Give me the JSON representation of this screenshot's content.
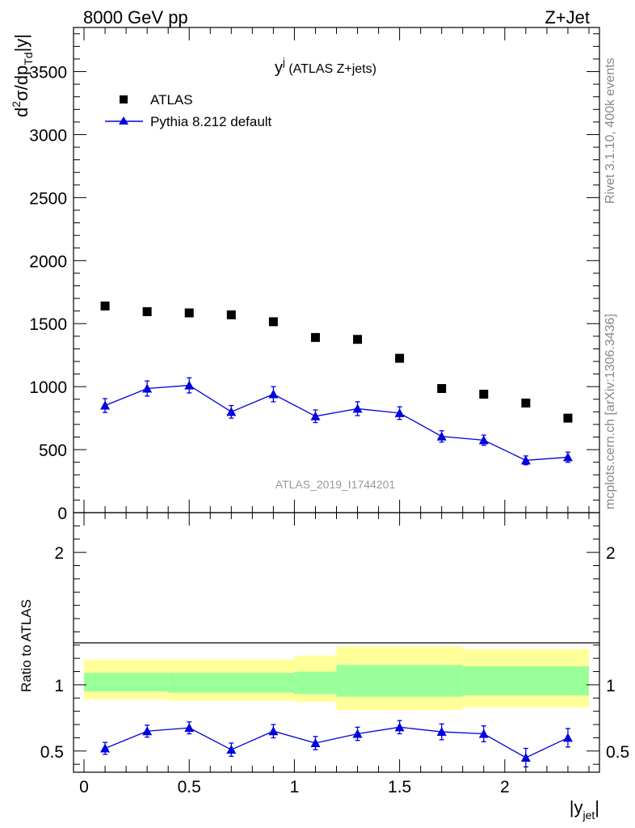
{
  "header": {
    "left": "8000 GeV pp",
    "right": "Z+Jet"
  },
  "side_labels": {
    "rivet": "Rivet 3.1.10,  400k events",
    "mcplots": "mcplots.cern.ch [arXiv:1306.3436]"
  },
  "colors": {
    "data": "#000000",
    "mc": "#0000dd",
    "band_inner": "#99ff99",
    "band_outer": "#ffff99"
  },
  "chart_data": [
    {
      "type": "scatter",
      "panel": "main",
      "title_main": "y",
      "title_sup": "j",
      "title_rest": " (ATLAS Z+jets)",
      "watermark": "ATLAS_2019_I1744201",
      "ylabel_parts": {
        "d": "d",
        "sup2": "2",
        "sigma_dp": "σ/dp",
        "sub_T": "T",
        "sub_d": "d",
        "abs": "|y|"
      },
      "xlim": [
        -0.05,
        2.45
      ],
      "ylim": [
        0,
        3850
      ],
      "yticks": [
        {
          "value": 0,
          "label": "0"
        },
        {
          "value": 500,
          "label": "500"
        },
        {
          "value": 1000,
          "label": "1000"
        },
        {
          "value": 1500,
          "label": "1500"
        },
        {
          "value": 2000,
          "label": "2000"
        },
        {
          "value": 2500,
          "label": "2500"
        },
        {
          "value": 3000,
          "label": "3000"
        },
        {
          "value": 3500,
          "label": "3500"
        }
      ],
      "legend_position": "top-left",
      "series": [
        {
          "name": "ATLAS",
          "marker": "square",
          "x": [
            0.1,
            0.3,
            0.5,
            0.7,
            0.9,
            1.1,
            1.3,
            1.5,
            1.7,
            1.9,
            2.1,
            2.3
          ],
          "y": [
            1640,
            1595,
            1585,
            1570,
            1515,
            1390,
            1375,
            1225,
            985,
            940,
            870,
            750
          ]
        },
        {
          "name": "Pythia 8.212 default",
          "marker": "triangle",
          "x": [
            0.1,
            0.3,
            0.5,
            0.7,
            0.9,
            1.1,
            1.3,
            1.5,
            1.7,
            1.9,
            2.1,
            2.3
          ],
          "y": [
            850,
            985,
            1010,
            800,
            940,
            765,
            825,
            790,
            605,
            575,
            415,
            440
          ],
          "yerr": [
            55,
            60,
            60,
            50,
            60,
            50,
            55,
            50,
            45,
            40,
            35,
            40
          ]
        }
      ]
    },
    {
      "type": "scatter",
      "panel": "ratio",
      "ylabel": "Ratio to ATLAS",
      "xlabel_main": "|y",
      "xlabel_sub": "jet",
      "xlabel_end": "|",
      "xlim": [
        -0.05,
        2.45
      ],
      "ylim": [
        0.34,
        2.3
      ],
      "xticks": [
        {
          "value": 0,
          "label": "0"
        },
        {
          "value": 0.5,
          "label": "0.5"
        },
        {
          "value": 1,
          "label": "1"
        },
        {
          "value": 1.5,
          "label": "1.5"
        },
        {
          "value": 2,
          "label": "2"
        }
      ],
      "yticks": [
        {
          "value": 0.5,
          "label": "0.5"
        },
        {
          "value": 1,
          "label": "1"
        },
        {
          "value": 2,
          "label": "2"
        }
      ],
      "bands": {
        "edges": [
          0.0,
          0.4,
          1.0,
          1.2,
          1.8,
          2.4
        ],
        "inner_low": [
          0.95,
          0.94,
          0.93,
          0.91,
          0.92
        ],
        "inner_high": [
          1.09,
          1.09,
          1.1,
          1.15,
          1.14
        ],
        "outer_low": [
          0.89,
          0.88,
          0.87,
          0.81,
          0.83
        ],
        "outer_high": [
          1.19,
          1.19,
          1.22,
          1.29,
          1.27
        ]
      },
      "series": [
        {
          "name": "Pythia 8.212 default",
          "marker": "triangle",
          "x": [
            0.1,
            0.3,
            0.5,
            0.7,
            0.9,
            1.1,
            1.3,
            1.5,
            1.7,
            1.9,
            2.1,
            2.3
          ],
          "y": [
            0.52,
            0.65,
            0.675,
            0.51,
            0.65,
            0.56,
            0.63,
            0.68,
            0.645,
            0.63,
            0.45,
            0.6
          ],
          "yerr": [
            0.045,
            0.045,
            0.045,
            0.05,
            0.05,
            0.05,
            0.05,
            0.05,
            0.06,
            0.06,
            0.07,
            0.07
          ]
        }
      ]
    }
  ]
}
